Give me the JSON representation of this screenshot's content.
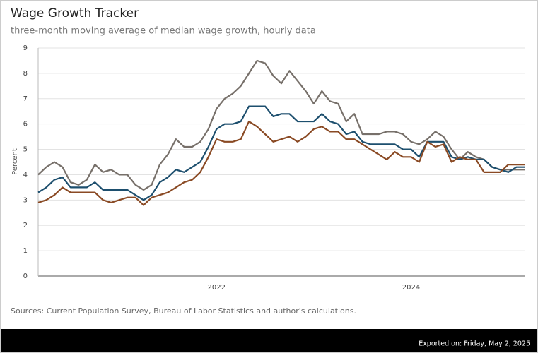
{
  "chart_data": {
    "type": "line",
    "title": "Wage Growth Tracker",
    "subtitle": "three-month moving average of median wage growth, hourly data",
    "y_label": "Percent",
    "source": "Sources: Current Population Survey, Bureau of Labor Statistics and author's calculations.",
    "export_note": "Exported on: Friday, May 2, 2025",
    "categories": [
      null,
      null,
      null,
      null,
      null,
      null,
      null,
      null,
      null,
      null,
      null,
      null,
      null,
      null,
      null,
      null,
      null,
      null,
      null,
      null,
      null,
      null,
      "2022",
      null,
      null,
      null,
      null,
      null,
      null,
      null,
      null,
      null,
      null,
      null,
      null,
      null,
      null,
      null,
      null,
      null,
      null,
      null,
      null,
      null,
      null,
      null,
      "2024",
      null,
      null,
      null,
      null,
      null,
      null,
      null,
      null,
      null,
      null,
      null,
      null,
      null,
      null
    ],
    "series": [
      {
        "color": "#77706a",
        "values": [
          4.0,
          4.3,
          4.5,
          4.3,
          3.7,
          3.6,
          3.8,
          4.4,
          4.1,
          4.2,
          4.0,
          4.0,
          3.6,
          3.4,
          3.6,
          4.4,
          4.8,
          5.4,
          5.1,
          5.1,
          5.3,
          5.8,
          6.6,
          7.0,
          7.2,
          7.5,
          8.0,
          8.5,
          8.4,
          7.9,
          7.6,
          8.1,
          7.7,
          7.3,
          6.8,
          7.3,
          6.9,
          6.8,
          6.1,
          6.4,
          5.6,
          5.6,
          5.6,
          5.7,
          5.7,
          5.6,
          5.3,
          5.2,
          5.4,
          5.7,
          5.5,
          5.0,
          4.6,
          4.9,
          4.7,
          4.6,
          4.3,
          4.2,
          4.2,
          4.2,
          4.2
        ]
      },
      {
        "color": "#1d4f6e",
        "values": [
          3.3,
          3.5,
          3.8,
          3.9,
          3.5,
          3.5,
          3.5,
          3.7,
          3.4,
          3.4,
          3.4,
          3.4,
          3.2,
          3.0,
          3.2,
          3.7,
          3.9,
          4.2,
          4.1,
          4.3,
          4.5,
          5.1,
          5.8,
          6.0,
          6.0,
          6.1,
          6.7,
          6.7,
          6.7,
          6.3,
          6.4,
          6.4,
          6.1,
          6.1,
          6.1,
          6.4,
          6.1,
          6.0,
          5.6,
          5.7,
          5.3,
          5.2,
          5.2,
          5.2,
          5.2,
          5.0,
          5.0,
          4.7,
          5.3,
          5.3,
          5.3,
          4.7,
          4.6,
          4.7,
          4.6,
          4.6,
          4.3,
          4.2,
          4.1,
          4.3,
          4.3
        ]
      },
      {
        "color": "#8a4a24",
        "values": [
          2.9,
          3.0,
          3.2,
          3.5,
          3.3,
          3.3,
          3.3,
          3.3,
          3.0,
          2.9,
          3.0,
          3.1,
          3.1,
          2.8,
          3.1,
          3.2,
          3.3,
          3.5,
          3.7,
          3.8,
          4.1,
          4.7,
          5.4,
          5.3,
          5.3,
          5.4,
          6.1,
          5.9,
          5.6,
          5.3,
          5.4,
          5.5,
          5.3,
          5.5,
          5.8,
          5.9,
          5.7,
          5.7,
          5.4,
          5.4,
          5.2,
          5.0,
          4.8,
          4.6,
          4.9,
          4.7,
          4.7,
          4.5,
          5.3,
          5.1,
          5.2,
          4.5,
          4.7,
          4.6,
          4.6,
          4.1,
          4.1,
          4.1,
          4.4,
          4.4,
          4.4
        ]
      }
    ],
    "ylim": [
      0,
      9
    ],
    "yticks": [
      0,
      1,
      2,
      3,
      4,
      5,
      6,
      7,
      8,
      9
    ],
    "grid": true
  }
}
